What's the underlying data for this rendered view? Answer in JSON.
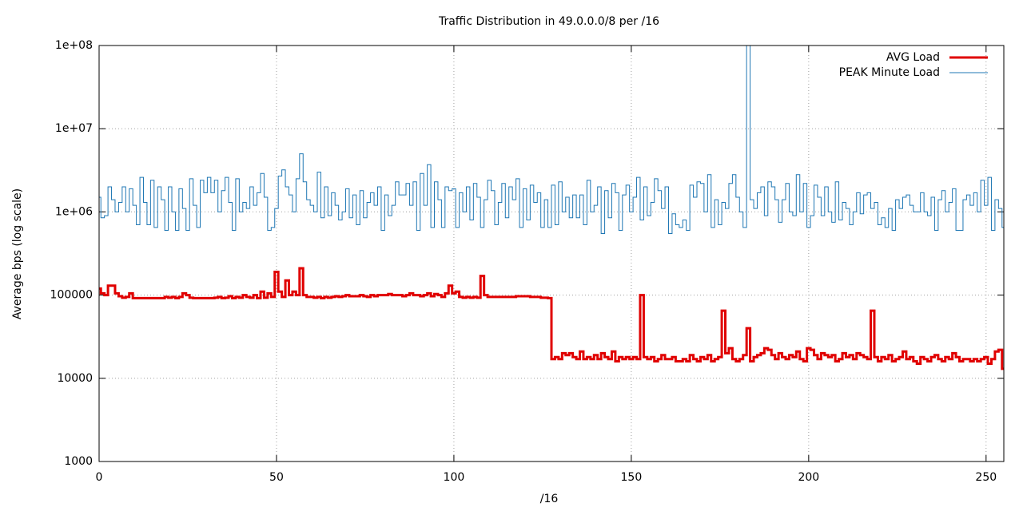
{
  "chart_data": {
    "type": "line",
    "title": "Traffic Distribution in 49.0.0.0/8 per /16",
    "xlabel": "/16",
    "ylabel": "Average bps (log scale)",
    "log_y": true,
    "grid": true,
    "legend": "top-right",
    "step": true,
    "xlim": [
      0,
      255
    ],
    "xticks": [
      0,
      50,
      100,
      150,
      200,
      250
    ],
    "ylim": [
      1000,
      100000000
    ],
    "yticks": [
      1000,
      10000,
      100000,
      {
        "value": 1000000,
        "label": "1e+06"
      },
      {
        "value": 10000000,
        "label": "1e+07"
      },
      {
        "value": 100000000,
        "label": "1e+08"
      }
    ],
    "x": [
      0,
      1,
      2,
      3,
      4,
      5,
      6,
      7,
      8,
      9,
      10,
      11,
      12,
      13,
      14,
      15,
      16,
      17,
      18,
      19,
      20,
      21,
      22,
      23,
      24,
      25,
      26,
      27,
      28,
      29,
      30,
      31,
      32,
      33,
      34,
      35,
      36,
      37,
      38,
      39,
      40,
      41,
      42,
      43,
      44,
      45,
      46,
      47,
      48,
      49,
      50,
      51,
      52,
      53,
      54,
      55,
      56,
      57,
      58,
      59,
      60,
      61,
      62,
      63,
      64,
      65,
      66,
      67,
      68,
      69,
      70,
      71,
      72,
      73,
      74,
      75,
      76,
      77,
      78,
      79,
      80,
      81,
      82,
      83,
      84,
      85,
      86,
      87,
      88,
      89,
      90,
      91,
      92,
      93,
      94,
      95,
      96,
      97,
      98,
      99,
      100,
      101,
      102,
      103,
      104,
      105,
      106,
      107,
      108,
      109,
      110,
      111,
      112,
      113,
      114,
      115,
      116,
      117,
      118,
      119,
      120,
      121,
      122,
      123,
      124,
      125,
      126,
      127,
      128,
      129,
      130,
      131,
      132,
      133,
      134,
      135,
      136,
      137,
      138,
      139,
      140,
      141,
      142,
      143,
      144,
      145,
      146,
      147,
      148,
      149,
      150,
      151,
      152,
      153,
      154,
      155,
      156,
      157,
      158,
      159,
      160,
      161,
      162,
      163,
      164,
      165,
      166,
      167,
      168,
      169,
      170,
      171,
      172,
      173,
      174,
      175,
      176,
      177,
      178,
      179,
      180,
      181,
      182,
      183,
      184,
      185,
      186,
      187,
      188,
      189,
      190,
      191,
      192,
      193,
      194,
      195,
      196,
      197,
      198,
      199,
      200,
      201,
      202,
      203,
      204,
      205,
      206,
      207,
      208,
      209,
      210,
      211,
      212,
      213,
      214,
      215,
      216,
      217,
      218,
      219,
      220,
      221,
      222,
      223,
      224,
      225,
      226,
      227,
      228,
      229,
      230,
      231,
      232,
      233,
      234,
      235,
      236,
      237,
      238,
      239,
      240,
      241,
      242,
      243,
      244,
      245,
      246,
      247,
      248,
      249,
      250,
      251,
      252,
      253,
      254,
      255
    ],
    "series": [
      {
        "name": "AVG Load",
        "color": "#e00000",
        "width": 3,
        "values": [
          120000,
          105000,
          100000,
          130000,
          130000,
          105000,
          97000,
          93000,
          95000,
          105000,
          92000,
          92000,
          92000,
          92000,
          92000,
          92000,
          92000,
          92000,
          92000,
          95000,
          93000,
          95000,
          92000,
          95000,
          105000,
          100000,
          93000,
          92000,
          92000,
          92000,
          92000,
          92000,
          92000,
          93000,
          95000,
          92000,
          93000,
          97000,
          92000,
          95000,
          93000,
          100000,
          95000,
          93000,
          100000,
          92000,
          110000,
          93000,
          105000,
          95000,
          190000,
          110000,
          95000,
          150000,
          100000,
          110000,
          100000,
          210000,
          100000,
          95000,
          95000,
          93000,
          95000,
          92000,
          95000,
          93000,
          95000,
          97000,
          95000,
          97000,
          100000,
          97000,
          97000,
          97000,
          100000,
          97000,
          95000,
          100000,
          97000,
          100000,
          100000,
          100000,
          103000,
          100000,
          100000,
          100000,
          97000,
          100000,
          105000,
          100000,
          100000,
          97000,
          100000,
          105000,
          97000,
          103000,
          100000,
          95000,
          105000,
          130000,
          105000,
          110000,
          95000,
          93000,
          95000,
          93000,
          95000,
          93000,
          170000,
          100000,
          95000,
          95000,
          95000,
          95000,
          95000,
          95000,
          95000,
          95000,
          97000,
          97000,
          97000,
          97000,
          95000,
          95000,
          95000,
          93000,
          93000,
          92000,
          17000,
          18000,
          17000,
          20000,
          19000,
          20000,
          18000,
          17000,
          21000,
          17000,
          18000,
          17000,
          19000,
          17000,
          20000,
          18000,
          17000,
          21000,
          16000,
          18000,
          17000,
          18000,
          17000,
          18000,
          17000,
          100000,
          18000,
          17000,
          18000,
          16000,
          17000,
          19000,
          17000,
          17000,
          18000,
          16000,
          16000,
          17000,
          16000,
          19000,
          17000,
          16000,
          18000,
          17000,
          19000,
          16000,
          17000,
          18000,
          65000,
          20000,
          23000,
          17000,
          16000,
          17000,
          19000,
          40000,
          16000,
          18000,
          19000,
          20000,
          23000,
          22000,
          19000,
          17000,
          20000,
          18000,
          17000,
          19000,
          18000,
          21000,
          17000,
          16000,
          23000,
          22000,
          19000,
          17000,
          20000,
          19000,
          18000,
          19000,
          16000,
          17000,
          20000,
          18000,
          19000,
          17000,
          20000,
          19000,
          18000,
          17000,
          65000,
          18000,
          16000,
          18000,
          17000,
          19000,
          16000,
          17000,
          18000,
          21000,
          17000,
          18000,
          16000,
          15000,
          18000,
          17000,
          16000,
          18000,
          19000,
          17000,
          16000,
          18000,
          17000,
          20000,
          18000,
          16000,
          17000,
          17000,
          16000,
          17000,
          16000,
          17000,
          18000,
          15000,
          17000,
          21000,
          22000,
          13000
        ]
      },
      {
        "name": "PEAK Minute Load",
        "color": "#1f77b4",
        "width": 1,
        "values": [
          1500000,
          850000,
          900000,
          2000000,
          1400000,
          1000000,
          1300000,
          2000000,
          1000000,
          1900000,
          1200000,
          700000,
          2600000,
          1300000,
          700000,
          2400000,
          650000,
          2000000,
          1400000,
          600000,
          2000000,
          1000000,
          600000,
          1900000,
          1100000,
          600000,
          2500000,
          1200000,
          650000,
          2400000,
          1700000,
          2600000,
          1700000,
          2400000,
          1000000,
          1800000,
          2600000,
          1300000,
          600000,
          2500000,
          1000000,
          1300000,
          1100000,
          2000000,
          1200000,
          1700000,
          2900000,
          1500000,
          600000,
          650000,
          1100000,
          2700000,
          3200000,
          2000000,
          1600000,
          1000000,
          2500000,
          5000000,
          2300000,
          1400000,
          1200000,
          1000000,
          3000000,
          850000,
          2000000,
          900000,
          1700000,
          1200000,
          800000,
          1000000,
          1900000,
          850000,
          1600000,
          700000,
          1800000,
          850000,
          1300000,
          1700000,
          1200000,
          2000000,
          600000,
          1600000,
          900000,
          1200000,
          2300000,
          1600000,
          1600000,
          2200000,
          1200000,
          2300000,
          600000,
          2900000,
          1200000,
          3700000,
          650000,
          2300000,
          1400000,
          650000,
          2000000,
          1800000,
          1900000,
          650000,
          1700000,
          1000000,
          2000000,
          800000,
          2200000,
          1500000,
          650000,
          1400000,
          2400000,
          1800000,
          700000,
          1300000,
          2200000,
          850000,
          2000000,
          1400000,
          2500000,
          650000,
          1900000,
          800000,
          2100000,
          1300000,
          1700000,
          650000,
          1400000,
          650000,
          2100000,
          700000,
          2300000,
          1000000,
          1500000,
          850000,
          1600000,
          850000,
          1600000,
          700000,
          2400000,
          1000000,
          1200000,
          2000000,
          550000,
          1800000,
          850000,
          2200000,
          1700000,
          600000,
          1600000,
          2100000,
          1000000,
          1500000,
          2600000,
          800000,
          2000000,
          900000,
          1300000,
          2500000,
          1800000,
          1100000,
          2000000,
          550000,
          950000,
          700000,
          650000,
          800000,
          600000,
          2100000,
          1500000,
          2300000,
          2200000,
          1000000,
          2800000,
          650000,
          1400000,
          700000,
          1300000,
          1100000,
          2200000,
          2800000,
          1500000,
          1000000,
          650000,
          100000000,
          1400000,
          1100000,
          1700000,
          2000000,
          900000,
          2300000,
          2000000,
          1400000,
          750000,
          1400000,
          2200000,
          1000000,
          900000,
          2800000,
          1000000,
          2200000,
          650000,
          900000,
          2100000,
          1500000,
          900000,
          2000000,
          1000000,
          750000,
          2300000,
          800000,
          1300000,
          1100000,
          700000,
          1000000,
          1700000,
          950000,
          1600000,
          1700000,
          1100000,
          1300000,
          700000,
          850000,
          650000,
          1100000,
          600000,
          1400000,
          1100000,
          1500000,
          1600000,
          1200000,
          1000000,
          1000000,
          1700000,
          1000000,
          900000,
          1500000,
          600000,
          1400000,
          1800000,
          1000000,
          1300000,
          1900000,
          600000,
          600000,
          1400000,
          1600000,
          1200000,
          1700000,
          1000000,
          2400000,
          1200000,
          2600000,
          600000,
          1400000,
          1100000,
          650000
        ]
      }
    ]
  }
}
